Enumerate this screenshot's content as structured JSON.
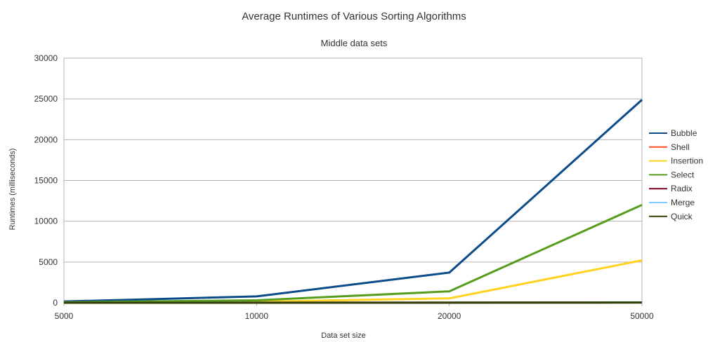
{
  "chart_data": {
    "type": "line",
    "title": "Average Runtimes of Various Sorting Algorithms",
    "subtitle": "Middle data sets",
    "xlabel": "Data set size",
    "ylabel": "Runtimes (milliseconds)",
    "categories": [
      "5000",
      "10000",
      "20000",
      "50000"
    ],
    "ylim": [
      0,
      30000
    ],
    "yticks": [
      0,
      5000,
      10000,
      15000,
      20000,
      25000,
      30000
    ],
    "grid": true,
    "legend_position": "right",
    "series": [
      {
        "name": "Bubble",
        "color": "#0b4a8b",
        "values": [
          160,
          780,
          3700,
          24900
        ]
      },
      {
        "name": "Shell",
        "color": "#ff4a1c",
        "values": [
          2,
          5,
          12,
          35
        ]
      },
      {
        "name": "Insertion",
        "color": "#ffd320",
        "values": [
          30,
          130,
          540,
          5200
        ]
      },
      {
        "name": "Select",
        "color": "#579d1c",
        "values": [
          60,
          300,
          1400,
          12000
        ]
      },
      {
        "name": "Radix",
        "color": "#7e0021",
        "values": [
          3,
          6,
          14,
          38
        ]
      },
      {
        "name": "Merge",
        "color": "#83caff",
        "values": [
          3,
          7,
          15,
          40
        ]
      },
      {
        "name": "Quick",
        "color": "#314004",
        "values": [
          2,
          5,
          10,
          30
        ]
      }
    ]
  }
}
